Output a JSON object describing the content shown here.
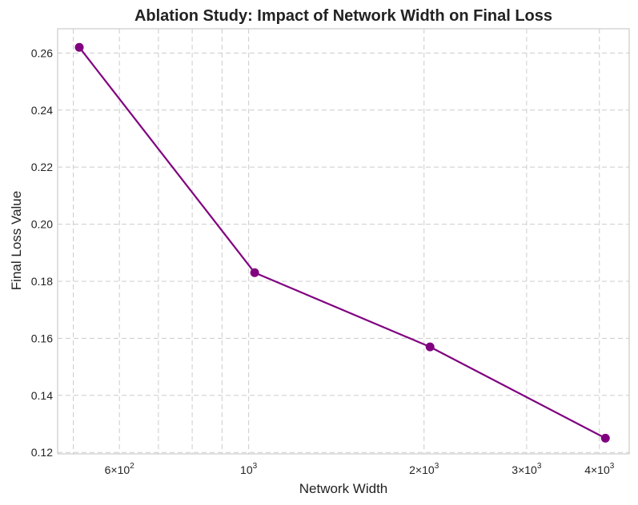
{
  "chart_data": {
    "type": "line",
    "title": "Ablation Study: Impact of Network Width on Final Loss",
    "xlabel": "Network Width",
    "ylabel": "Final Loss Value",
    "xscale": "log",
    "xlim": [
      470,
      4500
    ],
    "ylim": [
      0.1195,
      0.2685
    ],
    "grid": true,
    "legend": "none",
    "series": [
      {
        "name": "Final Loss",
        "x": [
          512,
          1024,
          2048,
          4096
        ],
        "y": [
          0.262,
          0.183,
          0.157,
          0.125
        ]
      }
    ],
    "y_ticks": [
      {
        "value": 0.12,
        "label": "0.12"
      },
      {
        "value": 0.14,
        "label": "0.14"
      },
      {
        "value": 0.16,
        "label": "0.16"
      },
      {
        "value": 0.18,
        "label": "0.18"
      },
      {
        "value": 0.2,
        "label": "0.20"
      },
      {
        "value": 0.22,
        "label": "0.22"
      },
      {
        "value": 0.24,
        "label": "0.24"
      },
      {
        "value": 0.26,
        "label": "0.26"
      }
    ],
    "x_major_ticks": [
      {
        "value": 1000,
        "base": "10",
        "exp": "3"
      }
    ],
    "x_minor_ticks": [
      {
        "value": 500
      },
      {
        "value": 600,
        "mantissa": "6",
        "base": "10",
        "exp": "2"
      },
      {
        "value": 700
      },
      {
        "value": 800
      },
      {
        "value": 900
      },
      {
        "value": 2000,
        "mantissa": "2",
        "base": "10",
        "exp": "3"
      },
      {
        "value": 3000,
        "mantissa": "3",
        "base": "10",
        "exp": "3"
      },
      {
        "value": 4000,
        "mantissa": "4",
        "base": "10",
        "exp": "3"
      }
    ],
    "colors": {
      "line": "#800080",
      "marker": "#800080",
      "grid": "#cccccc",
      "frame": "#cccccc",
      "text": "#222222"
    }
  }
}
